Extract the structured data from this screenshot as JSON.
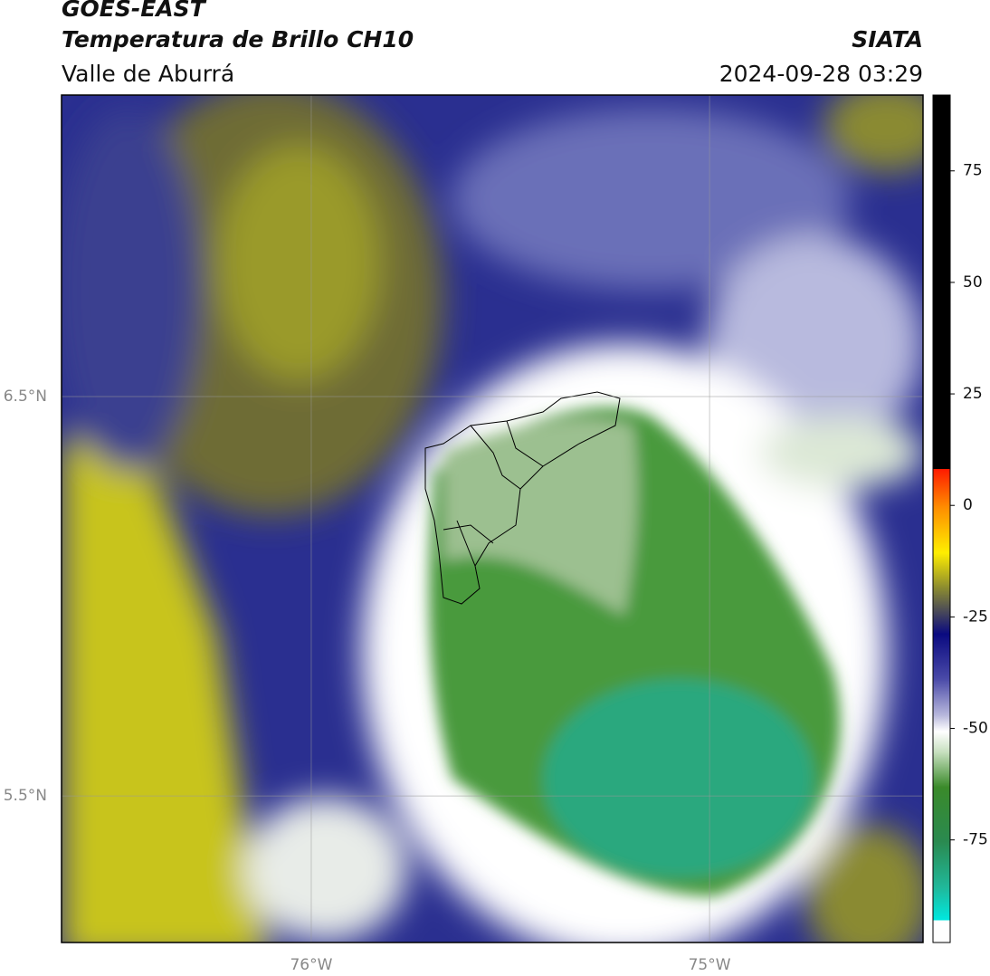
{
  "header": {
    "satellite": "GOES-EAST",
    "product": "Temperatura de Brillo CH10",
    "region": "Valle de Aburrá",
    "source": "SIATA",
    "datetime": "2024-09-28 03:29"
  },
  "map": {
    "xlim": [
      -76.627,
      -74.464
    ],
    "ylim": [
      5.133,
      7.255
    ],
    "xticks": [
      {
        "value": -76,
        "label": "76°W"
      },
      {
        "value": -75,
        "label": "75°W"
      }
    ],
    "yticks": [
      {
        "value": 6.5,
        "label": "6.5°N"
      },
      {
        "value": 5.5,
        "label": "5.5°N"
      }
    ],
    "grid": true
  },
  "colorbar": {
    "lim": [
      -98,
      92
    ],
    "ticks": [
      75,
      50,
      25,
      0,
      -25,
      -50,
      -75
    ]
  }
}
